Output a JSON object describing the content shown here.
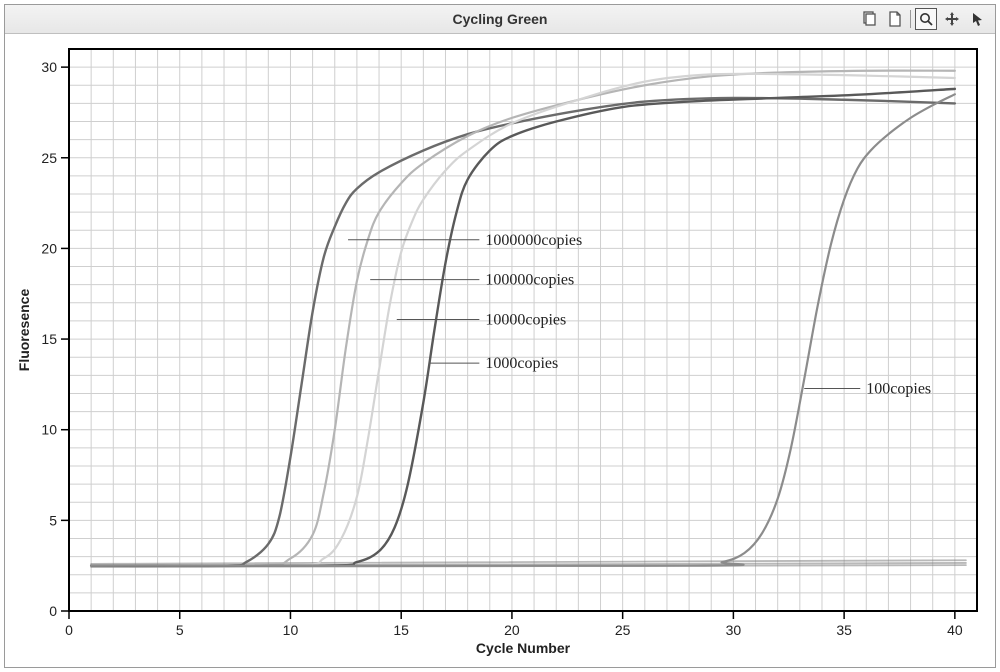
{
  "window": {
    "title": "Cycling Green",
    "border_color": "#9a9a9a",
    "titlebar_bg_top": "#f3f3f3",
    "titlebar_bg_bottom": "#e7e7e7"
  },
  "toolbar": {
    "icons": [
      "copy-icon",
      "page-icon",
      "zoom-icon",
      "pan-icon",
      "cursor-icon"
    ]
  },
  "chart": {
    "type": "line",
    "background_color": "#ffffff",
    "plot_border_color": "#000000",
    "plot_border_width": 2,
    "grid_color": "#cfcfcf",
    "grid_width": 1,
    "axis_tick_color": "#000000",
    "x_axis": {
      "label": "Cycle Number",
      "min": 0,
      "max": 41,
      "major_ticks": [
        0,
        5,
        10,
        15,
        20,
        25,
        30,
        35,
        40
      ],
      "minor_step": 1,
      "label_fontsize": 14,
      "tick_fontsize": 14
    },
    "y_axis": {
      "label": "Fluoresence",
      "min": 0,
      "max": 31,
      "major_ticks": [
        0,
        5,
        10,
        15,
        20,
        25,
        30
      ],
      "minor_step": 1,
      "label_fontsize": 14,
      "tick_fontsize": 14
    },
    "flatline": {
      "color": "#808080",
      "width": 1.8,
      "y": 2.5
    },
    "series": [
      {
        "name": "1000000copies",
        "label": "1000000copies",
        "color": "#6b6b6b",
        "width": 2.4,
        "label_xy": [
          18.8,
          20.2
        ],
        "leader_to_x": 12.6,
        "points": [
          [
            1,
            2.5
          ],
          [
            7,
            2.5
          ],
          [
            8,
            2.7
          ],
          [
            9,
            3.7
          ],
          [
            9.5,
            5.2
          ],
          [
            10,
            8.5
          ],
          [
            10.5,
            12.5
          ],
          [
            11,
            16.5
          ],
          [
            11.5,
            19.5
          ],
          [
            12,
            21.2
          ],
          [
            12.5,
            22.5
          ],
          [
            13,
            23.3
          ],
          [
            14,
            24.2
          ],
          [
            16,
            25.4
          ],
          [
            18,
            26.3
          ],
          [
            20,
            26.9
          ],
          [
            23,
            27.6
          ],
          [
            26,
            28.1
          ],
          [
            30,
            28.3
          ],
          [
            35,
            28.2
          ],
          [
            40,
            28.0
          ]
        ]
      },
      {
        "name": "100000copies",
        "label": "100000copies",
        "color": "#b5b5b5",
        "width": 2.2,
        "label_xy": [
          18.8,
          18.0
        ],
        "leader_to_x": 13.6,
        "points": [
          [
            1,
            2.5
          ],
          [
            8.5,
            2.5
          ],
          [
            10,
            2.9
          ],
          [
            11,
            4.2
          ],
          [
            11.5,
            6.5
          ],
          [
            12,
            10.0
          ],
          [
            12.5,
            14.5
          ],
          [
            13,
            18.2
          ],
          [
            13.5,
            20.5
          ],
          [
            14,
            22.0
          ],
          [
            15,
            23.6
          ],
          [
            16,
            24.7
          ],
          [
            18,
            26.2
          ],
          [
            20,
            27.2
          ],
          [
            23,
            28.2
          ],
          [
            26,
            29.0
          ],
          [
            29,
            29.5
          ],
          [
            32,
            29.7
          ],
          [
            36,
            29.8
          ],
          [
            40,
            29.8
          ]
        ]
      },
      {
        "name": "10000copies",
        "label": "10000copies",
        "color": "#d4d4d4",
        "width": 2.2,
        "label_xy": [
          18.8,
          15.8
        ],
        "leader_to_x": 14.8,
        "points": [
          [
            1,
            2.5
          ],
          [
            10,
            2.5
          ],
          [
            11.5,
            2.9
          ],
          [
            12.3,
            4.0
          ],
          [
            13,
            6.3
          ],
          [
            13.5,
            9.5
          ],
          [
            14,
            13.3
          ],
          [
            14.5,
            17.0
          ],
          [
            15,
            19.8
          ],
          [
            15.5,
            21.5
          ],
          [
            16,
            22.7
          ],
          [
            17,
            24.3
          ],
          [
            18,
            25.4
          ],
          [
            20,
            26.9
          ],
          [
            23,
            28.2
          ],
          [
            26,
            29.2
          ],
          [
            29,
            29.6
          ],
          [
            33,
            29.6
          ],
          [
            37,
            29.5
          ],
          [
            40,
            29.4
          ]
        ]
      },
      {
        "name": "1000copies",
        "label": "1000copies",
        "color": "#595959",
        "width": 2.4,
        "label_xy": [
          18.8,
          13.4
        ],
        "leader_to_x": 16.3,
        "points": [
          [
            1,
            2.5
          ],
          [
            11.5,
            2.5
          ],
          [
            13,
            2.7
          ],
          [
            14,
            3.3
          ],
          [
            14.7,
            4.6
          ],
          [
            15.3,
            7.0
          ],
          [
            16,
            11.5
          ],
          [
            16.5,
            15.5
          ],
          [
            17,
            19.2
          ],
          [
            17.5,
            22.0
          ],
          [
            18,
            23.8
          ],
          [
            19,
            25.4
          ],
          [
            20,
            26.2
          ],
          [
            22,
            27.0
          ],
          [
            25,
            27.8
          ],
          [
            28,
            28.1
          ],
          [
            32,
            28.3
          ],
          [
            36,
            28.5
          ],
          [
            40,
            28.8
          ]
        ]
      },
      {
        "name": "100copies",
        "label": "100copies",
        "color": "#8c8c8c",
        "width": 2.2,
        "label_xy": [
          36.0,
          12.0
        ],
        "leader_to_x": 33.2,
        "label_side": "right",
        "points": [
          [
            1,
            2.5
          ],
          [
            28,
            2.5
          ],
          [
            29.5,
            2.7
          ],
          [
            30.5,
            3.2
          ],
          [
            31.3,
            4.3
          ],
          [
            32,
            6.2
          ],
          [
            32.6,
            9.0
          ],
          [
            33.2,
            12.8
          ],
          [
            33.8,
            16.8
          ],
          [
            34.4,
            20.2
          ],
          [
            35,
            22.7
          ],
          [
            35.6,
            24.4
          ],
          [
            36.2,
            25.4
          ],
          [
            37,
            26.3
          ],
          [
            38,
            27.2
          ],
          [
            39,
            27.9
          ],
          [
            40,
            28.5
          ]
        ]
      }
    ]
  }
}
